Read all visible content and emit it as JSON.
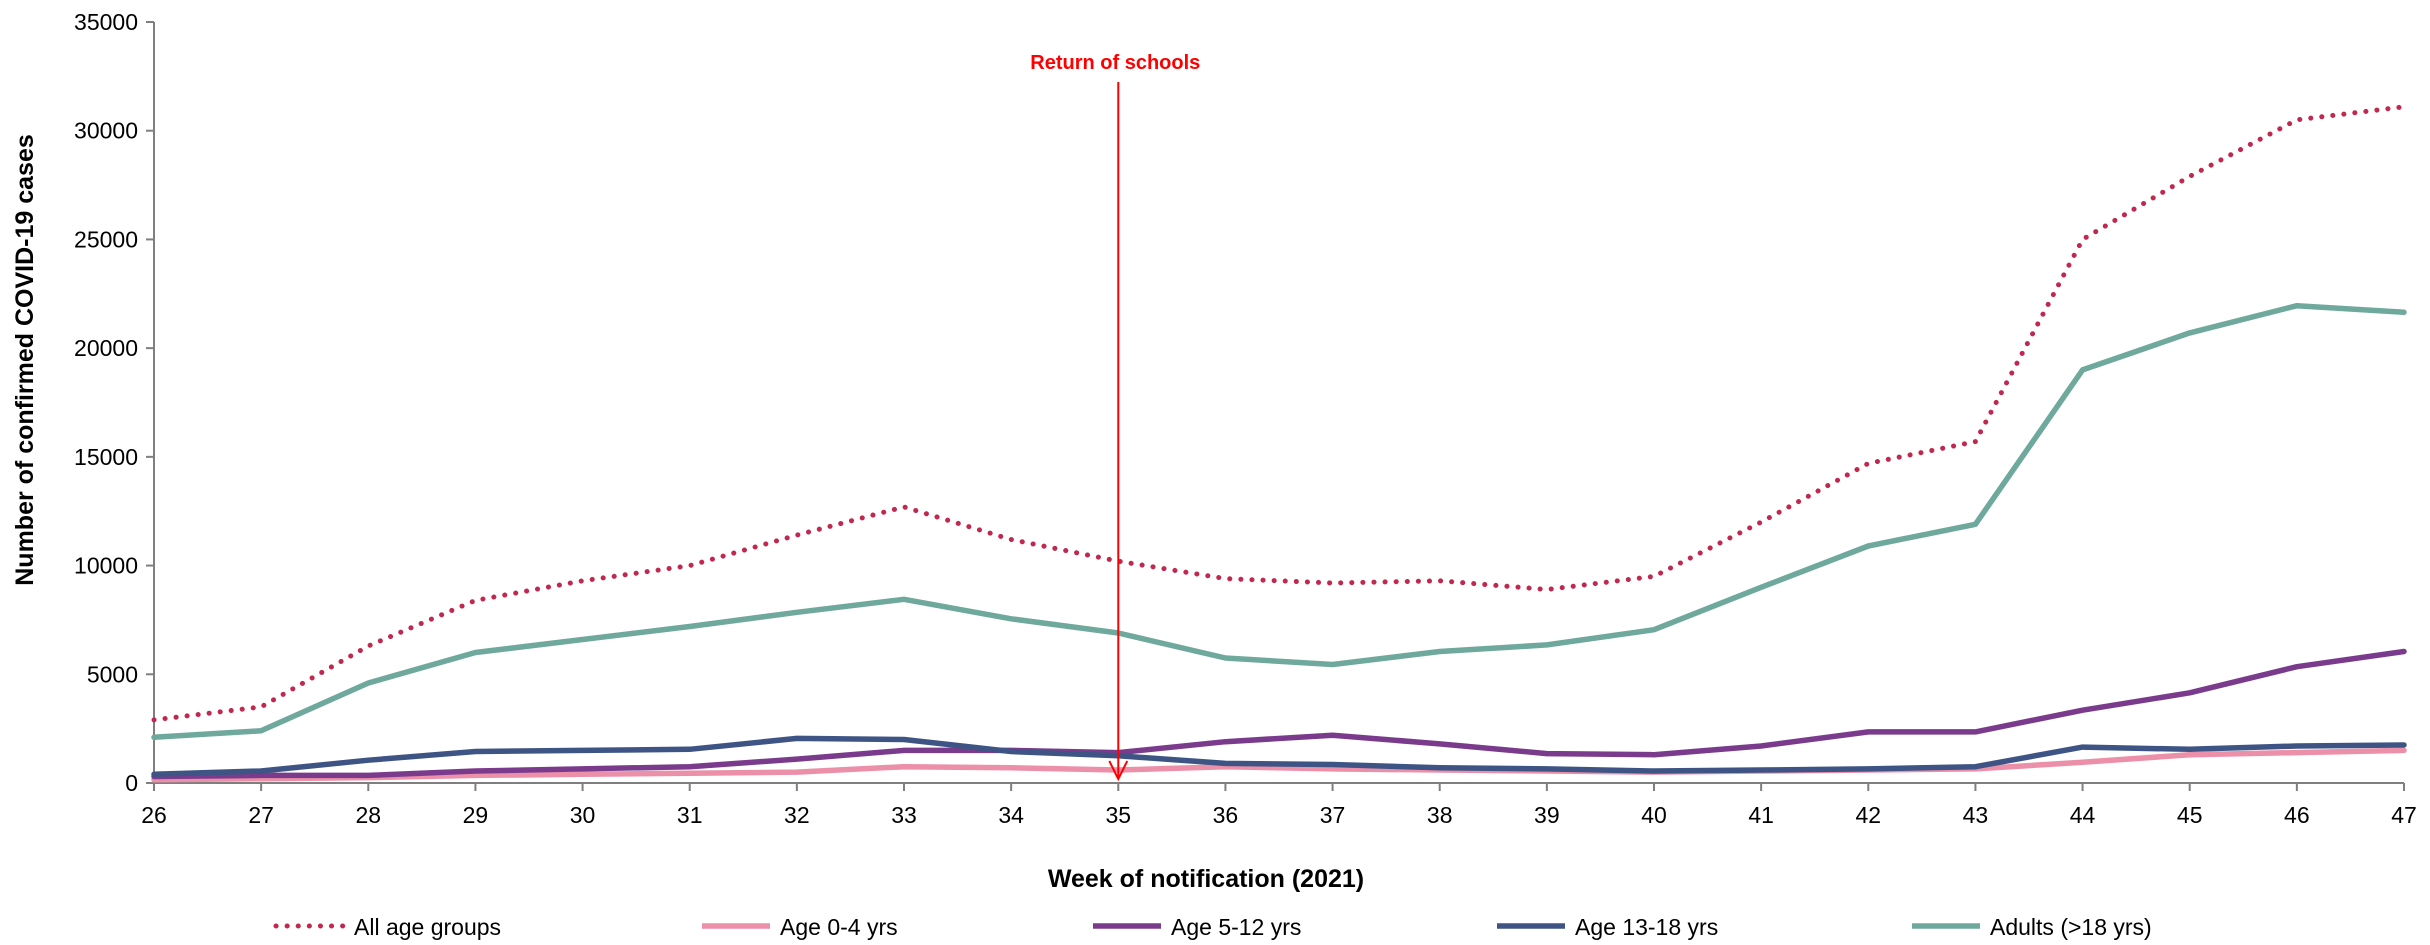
{
  "chart_data": {
    "type": "line",
    "title": "",
    "xlabel": "Week of notification (2021)",
    "ylabel": "Number of confirmed COVID-19 cases",
    "x": [
      26,
      27,
      28,
      29,
      30,
      31,
      32,
      33,
      34,
      35,
      36,
      37,
      38,
      39,
      40,
      41,
      42,
      43,
      44,
      45,
      46,
      47
    ],
    "xlim": [
      26,
      47
    ],
    "ylim": [
      0,
      35000
    ],
    "yticks": [
      0,
      5000,
      10000,
      15000,
      20000,
      25000,
      30000,
      35000
    ],
    "grid": false,
    "legend_position": "bottom",
    "series": [
      {
        "name": "All age groups",
        "color": "#c0284f",
        "style": "dotted",
        "values": [
          2900,
          3500,
          6300,
          8400,
          9300,
          10000,
          11400,
          12700,
          11200,
          10200,
          9400,
          9200,
          9300,
          8900,
          9500,
          12000,
          14700,
          15700,
          25000,
          27900,
          30500,
          31100
        ]
      },
      {
        "name": "Age 0-4 yrs",
        "color": "#ec8fa8",
        "style": "solid",
        "values": [
          150,
          200,
          250,
          350,
          400,
          450,
          500,
          750,
          700,
          600,
          750,
          650,
          600,
          550,
          500,
          550,
          600,
          650,
          950,
          1300,
          1400,
          1500
        ]
      },
      {
        "name": "Age 5-12 yrs",
        "color": "#7b3b8c",
        "style": "solid",
        "values": [
          300,
          350,
          350,
          550,
          650,
          750,
          1100,
          1500,
          1500,
          1400,
          1900,
          2200,
          1800,
          1350,
          1300,
          1700,
          2350,
          2350,
          3350,
          4150,
          5350,
          6050
        ]
      },
      {
        "name": "Age 13-18 yrs",
        "color": "#3d5484",
        "style": "solid",
        "values": [
          400,
          550,
          1050,
          1450,
          1500,
          1550,
          2050,
          2000,
          1450,
          1250,
          900,
          850,
          700,
          650,
          550,
          600,
          650,
          750,
          1650,
          1550,
          1700,
          1750
        ]
      },
      {
        "name": "Adults (>18 yrs)",
        "color": "#6fa89c",
        "style": "solid",
        "values": [
          2100,
          2400,
          4600,
          6000,
          6600,
          7200,
          7850,
          8450,
          7550,
          6900,
          5750,
          5450,
          6050,
          6350,
          7050,
          9000,
          10900,
          11900,
          19000,
          20700,
          21950,
          21650
        ]
      }
    ],
    "annotations": [
      {
        "label": "Return of schools",
        "x": 35,
        "color": "#ff0000"
      }
    ]
  }
}
